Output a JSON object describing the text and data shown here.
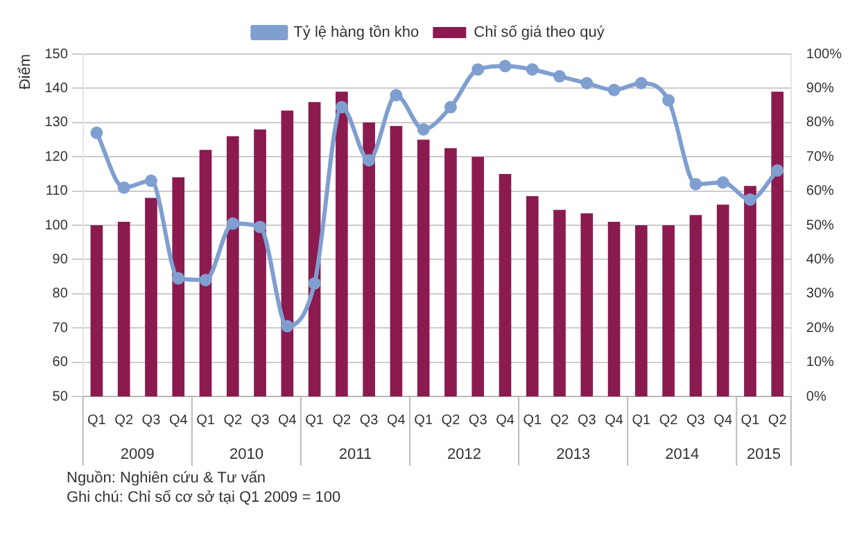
{
  "chart_data": {
    "type": "bar",
    "ylabel": "Điểm",
    "categories": [
      "Q1",
      "Q2",
      "Q3",
      "Q4",
      "Q1",
      "Q2",
      "Q3",
      "Q4",
      "Q1",
      "Q2",
      "Q3",
      "Q4",
      "Q1",
      "Q2",
      "Q3",
      "Q4",
      "Q1",
      "Q2",
      "Q3",
      "Q4",
      "Q1",
      "Q2",
      "Q3",
      "Q4",
      "Q1",
      "Q2"
    ],
    "series": [
      {
        "name": "Chỉ số giá theo quý",
        "color": "#8b1a4f",
        "values": [
          100,
          101,
          108,
          114,
          122,
          126,
          128,
          133.5,
          136,
          139,
          130,
          129,
          125,
          122.5,
          120,
          115,
          108.5,
          104.5,
          103.5,
          101,
          100,
          100,
          103,
          106,
          111.5,
          139
        ]
      },
      {
        "name": "Tỷ lệ hàng tồn kho",
        "type": "line",
        "axis": "y2",
        "color": "#7f9fd0",
        "marker": "circle",
        "values": [
          77,
          61,
          63,
          34.5,
          34,
          50.5,
          49.5,
          20.5,
          33,
          84.5,
          69,
          88,
          78,
          84.5,
          95.5,
          96.5,
          95.5,
          93.5,
          91.5,
          89.5,
          91.5,
          86.5,
          62,
          62.5,
          57.5,
          66
        ]
      }
    ],
    "ylim": [
      50,
      150
    ],
    "yticks": [
      50,
      60,
      70,
      80,
      90,
      100,
      110,
      120,
      130,
      140,
      150
    ],
    "y2lim": [
      0,
      100
    ],
    "y2ticks": [
      {
        "value": 0,
        "label": "0%"
      },
      {
        "value": 10,
        "label": "10%"
      },
      {
        "value": 20,
        "label": "20%"
      },
      {
        "value": 30,
        "label": "30%"
      },
      {
        "value": 40,
        "label": "40%"
      },
      {
        "value": 50,
        "label": "50%"
      },
      {
        "value": 60,
        "label": "60%"
      },
      {
        "value": 70,
        "label": "70%"
      },
      {
        "value": 80,
        "label": "80%"
      },
      {
        "value": 90,
        "label": "90%"
      },
      {
        "value": 100,
        "label": "100%"
      }
    ],
    "grid": "y",
    "legend": "top",
    "annotations": [
      "2009",
      "2010",
      "2011",
      "2012",
      "2013",
      "2014",
      "2015",
      "Nguồn: Nghiên cứu & Tư vấn",
      "Ghi chú: Chỉ số cơ sở tại Q1 2009 = 100"
    ]
  }
}
